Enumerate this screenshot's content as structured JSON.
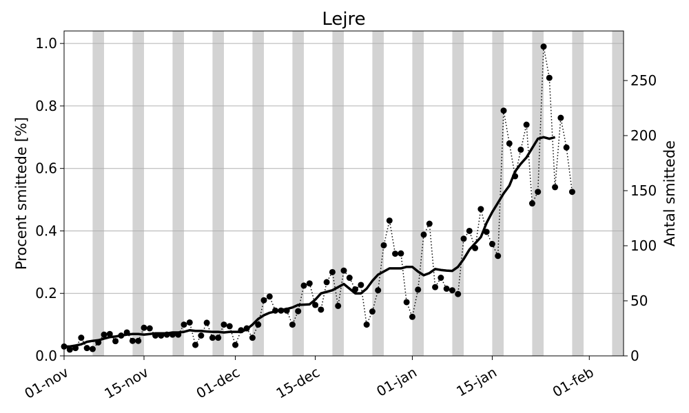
{
  "chart_data": {
    "type": "line",
    "title": "Lejre",
    "ylabel_left": "Procent smittede [%]",
    "ylabel_right": "Antal smittede",
    "x_ticks": [
      "01-nov",
      "15-nov",
      "01-dec",
      "15-dec",
      "01-jan",
      "15-jan",
      "01-feb"
    ],
    "x_tick_days": [
      0,
      14,
      30,
      44,
      61,
      75,
      92
    ],
    "xlim_days": [
      0,
      98
    ],
    "start_date": "2020-11-01",
    "ylim_left": [
      0,
      1.04
    ],
    "ylim_right": [
      0,
      295
    ],
    "yticks_left": [
      "0.0",
      "0.2",
      "0.4",
      "0.6",
      "0.8",
      "1.0"
    ],
    "yticks_right": [
      "0",
      "50",
      "100",
      "150",
      "200",
      "250"
    ],
    "grid": "horizontal",
    "weekend_day_offsets": [
      5,
      12,
      19,
      26,
      33,
      40,
      47,
      54,
      61,
      68,
      75,
      82,
      89,
      96
    ],
    "series": [
      {
        "style": "dotted-markers",
        "values": [
          0.03,
          0.02,
          0.025,
          0.058,
          0.025,
          0.022,
          0.043,
          0.068,
          0.07,
          0.047,
          0.065,
          0.075,
          0.048,
          0.048,
          0.09,
          0.088,
          0.065,
          0.065,
          0.068,
          0.068,
          0.068,
          0.1,
          0.107,
          0.035,
          0.065,
          0.106,
          0.058,
          0.058,
          0.1,
          0.095,
          0.035,
          0.082,
          0.088,
          0.058,
          0.1,
          0.178,
          0.19,
          0.145,
          0.145,
          0.145,
          0.1,
          0.143,
          0.225,
          0.232,
          0.163,
          0.148,
          0.236,
          0.268,
          0.16,
          0.273,
          0.25,
          0.213,
          0.227,
          0.1,
          0.142,
          0.21,
          0.354,
          0.433,
          0.327,
          0.328,
          0.172,
          0.125,
          0.212,
          0.388,
          0.423,
          0.22,
          0.25,
          0.215,
          0.21,
          0.198,
          0.375,
          0.4,
          0.345,
          0.47,
          0.397,
          0.358,
          0.32,
          0.785,
          0.68,
          0.575,
          0.66,
          0.74,
          0.488,
          0.525,
          0.99,
          0.89,
          0.54,
          0.762,
          0.667,
          0.525
        ]
      },
      {
        "style": "solid",
        "values": [
          0.03,
          0.03,
          0.033,
          0.037,
          0.045,
          0.048,
          0.05,
          0.055,
          0.06,
          0.062,
          0.065,
          0.068,
          0.07,
          0.07,
          0.068,
          0.07,
          0.072,
          0.072,
          0.072,
          0.075,
          0.075,
          0.077,
          0.082,
          0.08,
          0.08,
          0.078,
          0.077,
          0.077,
          0.075,
          0.077,
          0.077,
          0.077,
          0.085,
          0.1,
          0.118,
          0.13,
          0.138,
          0.142,
          0.147,
          0.15,
          0.155,
          0.163,
          0.164,
          0.165,
          0.18,
          0.2,
          0.205,
          0.21,
          0.22,
          0.23,
          0.215,
          0.2,
          0.2,
          0.215,
          0.24,
          0.26,
          0.27,
          0.28,
          0.28,
          0.28,
          0.285,
          0.285,
          0.27,
          0.258,
          0.265,
          0.278,
          0.275,
          0.273,
          0.272,
          0.285,
          0.31,
          0.34,
          0.36,
          0.38,
          0.425,
          0.46,
          0.49,
          0.52,
          0.545,
          0.59,
          0.615,
          0.635,
          0.665,
          0.695,
          0.7,
          0.695,
          0.7
        ]
      }
    ]
  }
}
